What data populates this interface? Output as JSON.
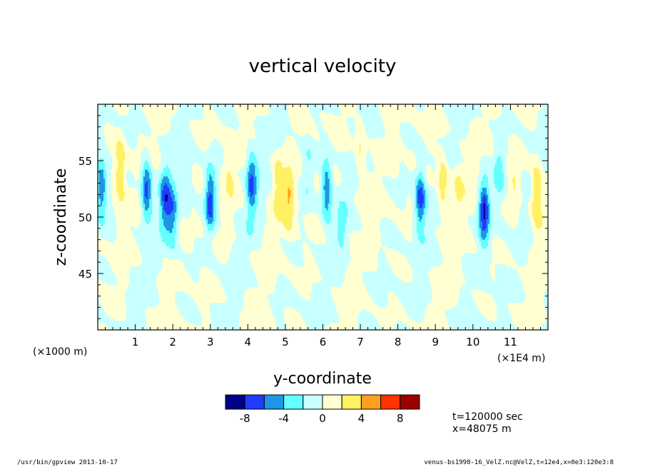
{
  "chart_data": {
    "type": "heatmap",
    "title": "vertical velocity",
    "xlabel": "y-coordinate",
    "ylabel": "z-coordinate",
    "x_unit_left": "(×1000 m)",
    "x_unit_right": "(×1E4 m)",
    "xlim": [
      0,
      12
    ],
    "ylim": [
      40,
      60
    ],
    "x_ticks": [
      1,
      2,
      3,
      4,
      5,
      6,
      7,
      8,
      9,
      10,
      11
    ],
    "x_tick_labels": [
      "1",
      "2",
      "3",
      "4",
      "5",
      "6",
      "7",
      "8",
      "9",
      "10",
      "11"
    ],
    "y_ticks": [
      45,
      50,
      55
    ],
    "y_tick_labels": [
      "45",
      "50",
      "55"
    ],
    "colorbar": {
      "levels": [
        -10,
        -8,
        -6,
        -4,
        -2,
        0,
        2,
        4,
        6,
        8,
        10
      ],
      "labels": [
        "-8",
        "-4",
        "0",
        "4",
        "8"
      ],
      "label_values": [
        -8,
        -4,
        0,
        4,
        8
      ],
      "colors": [
        "#00008b",
        "#1e3cff",
        "#1e96e6",
        "#64ffff",
        "#c8ffff",
        "#ffffd2",
        "#fff064",
        "#ffa01e",
        "#ff3200",
        "#9b0000"
      ]
    },
    "features": [
      {
        "y": 0.1,
        "z": 52.5,
        "w": -6
      },
      {
        "y": 0.6,
        "z": 54.0,
        "w": 4
      },
      {
        "y": 1.3,
        "z": 52.5,
        "w": -7
      },
      {
        "y": 1.8,
        "z": 51.5,
        "w": -6
      },
      {
        "y": 2.0,
        "z": 50.0,
        "w": -5
      },
      {
        "y": 2.4,
        "z": 53.0,
        "w": -2
      },
      {
        "y": 3.0,
        "z": 51.5,
        "w": -7
      },
      {
        "y": 3.5,
        "z": 54.0,
        "w": 2
      },
      {
        "y": 4.1,
        "z": 53.0,
        "w": -6
      },
      {
        "y": 4.8,
        "z": 53.0,
        "w": 3
      },
      {
        "y": 5.1,
        "z": 51.5,
        "w": 4
      },
      {
        "y": 5.6,
        "z": 54.0,
        "w": -2
      },
      {
        "y": 6.1,
        "z": 52.5,
        "w": -6
      },
      {
        "y": 6.5,
        "z": 49.0,
        "w": -2
      },
      {
        "y": 7.0,
        "z": 56.0,
        "w": 3
      },
      {
        "y": 7.3,
        "z": 50.0,
        "w": 0.8
      },
      {
        "y": 8.6,
        "z": 51.5,
        "w": -7
      },
      {
        "y": 9.2,
        "z": 53.0,
        "w": 4
      },
      {
        "y": 9.6,
        "z": 52.5,
        "w": 2
      },
      {
        "y": 10.3,
        "z": 50.5,
        "w": -8
      },
      {
        "y": 10.7,
        "z": 54.0,
        "w": -3
      },
      {
        "y": 11.1,
        "z": 53.0,
        "w": 2
      },
      {
        "y": 11.7,
        "z": 52.0,
        "w": 5
      }
    ]
  },
  "info": {
    "time": "t=120000 sec",
    "position": "x=48075 m"
  },
  "footer": {
    "left": "/usr/bin/gpview   2013-10-17",
    "right": "venus-bs1998-16_VelZ.nc@VelZ,t=12e4,x=0e3:120e3:8"
  }
}
